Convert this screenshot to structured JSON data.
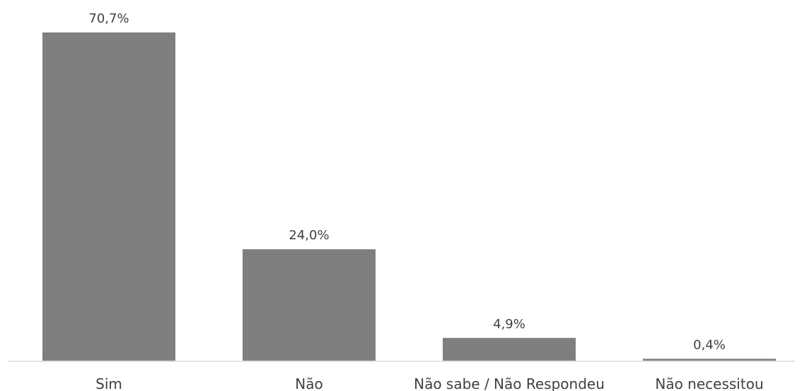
{
  "chart_data": {
    "type": "bar",
    "categories": [
      "Sim",
      "Não",
      "Não sabe / Não Respondeu",
      "Não necessitou"
    ],
    "values": [
      70.7,
      24.0,
      4.9,
      0.4
    ],
    "data_labels": [
      "70,7%",
      "24,0%",
      "4,9%",
      "0,4%"
    ],
    "ylim": [
      0,
      70.7
    ],
    "grid": false,
    "colors": {
      "bar": "#7f7f7f",
      "text": "#404040",
      "axis": "#d9d9d9"
    }
  }
}
